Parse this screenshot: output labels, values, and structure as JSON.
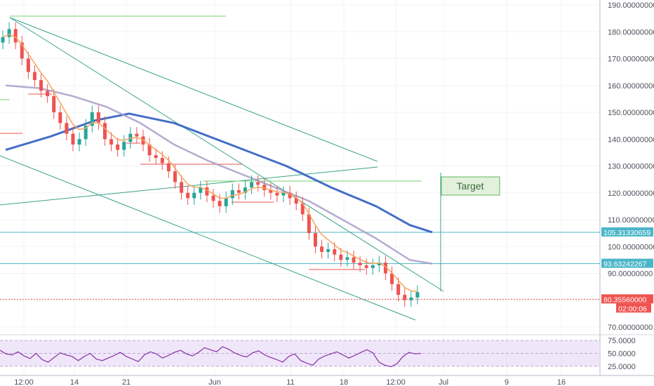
{
  "chart_data": {
    "type": "candlestick",
    "title": "",
    "xlabel": "",
    "ylabel": "",
    "x_tick_labels": [
      "12:00",
      "14",
      "21",
      "Jun",
      "11",
      "18",
      "12:00",
      "Jul",
      "9",
      "16"
    ],
    "y_tick_labels": [
      "190.00000000",
      "180.00000000",
      "170.00000000",
      "160.00000000",
      "150.00000000",
      "140.00000000",
      "130.00000000",
      "120.00000000",
      "110.00000000",
      "100.00000000",
      "90.00000000",
      "80.00000000",
      "70.00000000"
    ],
    "ylim": [
      65,
      193
    ],
    "grid": true,
    "price_tags": [
      {
        "label": "105.31330659",
        "color": "#4ab6c8"
      },
      {
        "label": "93.63242267",
        "color": "#4ab6c8"
      },
      {
        "label": "80.35560000",
        "color": "#ef5350"
      },
      {
        "label": "02:00:06",
        "color": "#ef5350"
      }
    ],
    "levels": [
      {
        "value": 105.31,
        "color": "#4ab6c8"
      },
      {
        "value": 93.63,
        "color": "#4ab6c8"
      },
      {
        "value": 80.36,
        "color": "#ef5350"
      }
    ],
    "annotation": {
      "text": "Target"
    },
    "candles_close_approx": [
      178,
      181,
      176,
      170,
      165,
      162,
      158,
      156,
      150,
      146,
      142,
      138,
      140,
      145,
      150,
      146,
      140,
      138,
      136,
      139,
      142,
      141,
      138,
      134,
      133,
      131,
      128,
      124,
      120,
      118,
      120,
      122,
      119,
      117,
      115,
      118,
      121,
      120,
      122,
      124,
      123,
      121,
      120,
      119,
      120,
      118,
      116,
      112,
      105,
      100,
      98,
      99,
      97,
      95,
      96,
      94,
      93,
      92,
      93,
      94,
      90,
      86,
      82,
      80,
      81,
      83
    ],
    "moving_averages": [
      {
        "color": "#3a66c4",
        "points": [
          [
            0,
            136
          ],
          [
            8,
            141
          ],
          [
            16,
            147
          ],
          [
            22,
            149.5
          ],
          [
            30,
            146
          ],
          [
            40,
            138
          ],
          [
            50,
            130
          ],
          [
            58,
            122
          ],
          [
            66,
            115
          ],
          [
            72,
            108
          ],
          [
            76,
            105.3
          ]
        ]
      },
      {
        "color": "#a89cc8",
        "points": [
          [
            0,
            160
          ],
          [
            6,
            159
          ],
          [
            12,
            156
          ],
          [
            18,
            152
          ],
          [
            24,
            146
          ],
          [
            30,
            138
          ],
          [
            36,
            132
          ],
          [
            42,
            127
          ],
          [
            48,
            122
          ],
          [
            54,
            117
          ],
          [
            60,
            110
          ],
          [
            66,
            103
          ],
          [
            72,
            95
          ],
          [
            76,
            93.6
          ]
        ]
      }
    ],
    "rsi": {
      "y_tick_labels": [
        "75.0000",
        "50.0000",
        "25.0000"
      ],
      "ylim": [
        18,
        82
      ],
      "values": [
        56,
        49,
        47,
        53,
        45,
        40,
        50,
        38,
        33,
        42,
        51,
        47,
        44,
        36,
        44,
        50,
        39,
        36,
        41,
        46,
        52,
        44,
        39,
        34,
        47,
        53,
        49,
        41,
        46,
        52,
        56,
        49,
        45,
        52,
        61,
        57,
        53,
        63,
        58,
        51,
        46,
        43,
        51,
        55,
        47,
        42,
        38,
        33,
        44,
        49,
        36,
        31,
        27,
        39,
        45,
        49,
        53,
        47,
        41,
        46,
        52,
        57,
        51,
        33,
        27,
        24,
        30,
        44,
        52,
        49,
        50
      ]
    }
  }
}
